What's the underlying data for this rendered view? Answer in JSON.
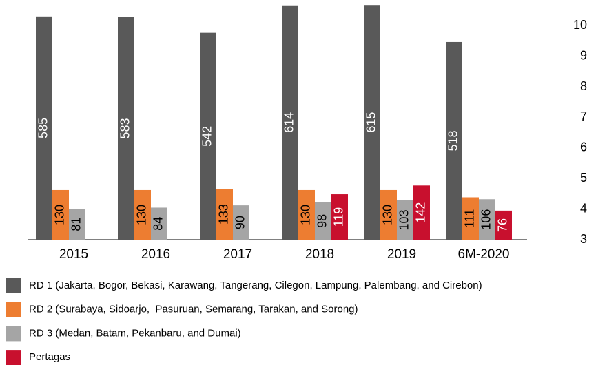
{
  "chart_data": {
    "type": "bar",
    "categories": [
      "2015",
      "2016",
      "2017",
      "2018",
      "2019",
      "6M-2020"
    ],
    "series": [
      {
        "name": "RD 1 (Jakarta, Bogor, Bekasi, Karawang, Tangerang, Cilegon, Lampung, Palembang, and Cirebon)",
        "color": "#595959",
        "label_color": "#ffffff",
        "values": [
          585,
          583,
          542,
          614,
          615,
          518
        ]
      },
      {
        "name": "RD 2 (Surabaya, Sidoarjo,  Pasuruan, Semarang, Tarakan, and Sorong)",
        "color": "#ed7d31",
        "label_color": "#000000",
        "values": [
          130,
          130,
          133,
          130,
          130,
          111
        ]
      },
      {
        "name": "RD 3 (Medan, Batam, Pekanbaru, and Dumai)",
        "color": "#a5a5a5",
        "label_color": "#000000",
        "values": [
          81,
          84,
          90,
          98,
          103,
          106
        ]
      },
      {
        "name": "Pertagas",
        "color": "#c8102e",
        "label_color": "#ffffff",
        "values": [
          null,
          null,
          null,
          119,
          142,
          76
        ]
      }
    ],
    "ylim": [
      0,
      628
    ],
    "y2lim": [
      3,
      10.84
    ],
    "y2ticks": [
      3,
      4,
      5,
      6,
      7,
      8,
      9,
      10
    ]
  }
}
